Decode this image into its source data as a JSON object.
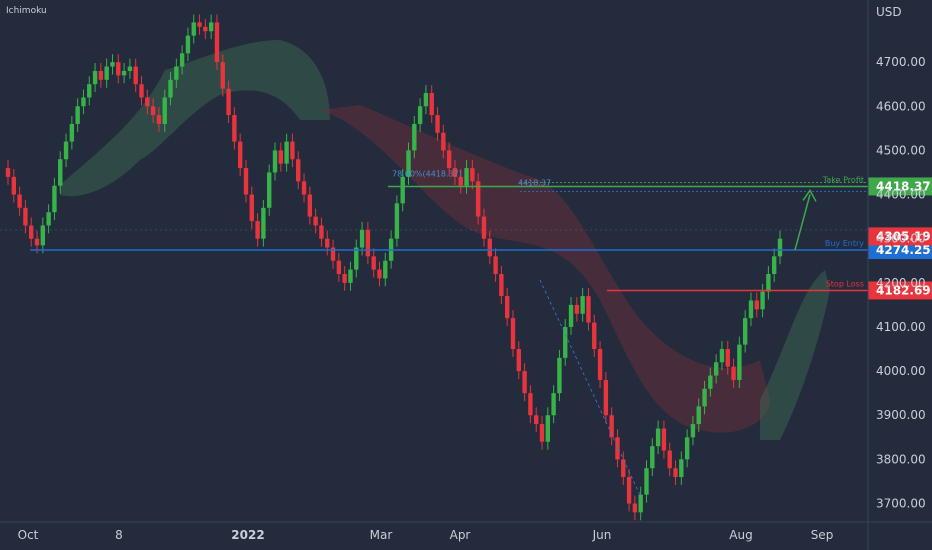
{
  "indicator_label": "Ichimoku",
  "currency": "USD",
  "colors": {
    "background": "#232b3c",
    "axis_text": "#c9ced8",
    "up": "#37b34a",
    "down": "#e8343d",
    "cloud_bull": "#3d6e52",
    "cloud_bear": "#6b2f3c",
    "take_profit": "#3ea84b",
    "buy_entry": "#1f6fd0",
    "stop_loss": "#e8343d",
    "current_price": "#e8343d"
  },
  "chart_data": {
    "type": "candlestick",
    "x_ticks": [
      "Oct",
      "8",
      "2022",
      "Mar",
      "Apr",
      "Jun",
      "Aug",
      "Sep"
    ],
    "y_ticks": [
      4700,
      4600,
      4500,
      4400,
      4300,
      4200,
      4100,
      4000,
      3900,
      3800,
      3700
    ],
    "ylim": [
      3640,
      4800
    ],
    "levels": [
      {
        "name": "Take Profit",
        "value": 4418.37,
        "label": "4418.37"
      },
      {
        "name": "Buy Entry",
        "value": 4274.25,
        "label": "4274.25"
      },
      {
        "name": "Stop Loss",
        "value": 4182.69,
        "label": "4182.69"
      }
    ],
    "current_price": {
      "value": 4305.19,
      "label": "4305.19"
    },
    "annotations": [
      "78.60%(4418.37)",
      "4418.37"
    ],
    "closes": [
      4440,
      4400,
      4370,
      4330,
      4300,
      4285,
      4330,
      4360,
      4420,
      4480,
      4520,
      4560,
      4600,
      4620,
      4650,
      4680,
      4660,
      4690,
      4700,
      4670,
      4680,
      4690,
      4650,
      4620,
      4600,
      4580,
      4560,
      4620,
      4660,
      4690,
      4720,
      4760,
      4790,
      4780,
      4770,
      4790,
      4700,
      4640,
      4580,
      4520,
      4460,
      4400,
      4340,
      4300,
      4370,
      4450,
      4500,
      4470,
      4520,
      4480,
      4430,
      4400,
      4350,
      4330,
      4300,
      4280,
      4250,
      4220,
      4200,
      4230,
      4280,
      4320,
      4260,
      4230,
      4210,
      4250,
      4300,
      4380,
      4440,
      4500,
      4560,
      4600,
      4630,
      4580,
      4540,
      4500,
      4460,
      4440,
      4420,
      4460,
      4430,
      4350,
      4300,
      4260,
      4220,
      4170,
      4120,
      4050,
      4000,
      3950,
      3900,
      3880,
      3840,
      3900,
      3950,
      4030,
      4100,
      4150,
      4130,
      4170,
      4110,
      4050,
      3980,
      3900,
      3850,
      3800,
      3760,
      3700,
      3680,
      3720,
      3780,
      3830,
      3870,
      3820,
      3780,
      3760,
      3800,
      3850,
      3880,
      3920,
      3960,
      3990,
      4020,
      4050,
      4010,
      3980,
      4060,
      4120,
      4160,
      4140,
      4180,
      4220,
      4260,
      4300
    ],
    "opens": [
      4460,
      4440,
      4400,
      4370,
      4330,
      4300,
      4285,
      4330,
      4360,
      4420,
      4480,
      4520,
      4560,
      4600,
      4620,
      4650,
      4680,
      4660,
      4690,
      4700,
      4670,
      4680,
      4690,
      4650,
      4620,
      4600,
      4580,
      4560,
      4620,
      4660,
      4690,
      4720,
      4760,
      4790,
      4780,
      4770,
      4790,
      4700,
      4640,
      4580,
      4520,
      4460,
      4400,
      4340,
      4300,
      4370,
      4450,
      4500,
      4470,
      4520,
      4480,
      4430,
      4400,
      4350,
      4330,
      4300,
      4280,
      4250,
      4220,
      4200,
      4230,
      4280,
      4320,
      4260,
      4230,
      4210,
      4250,
      4300,
      4380,
      4440,
      4500,
      4560,
      4600,
      4630,
      4580,
      4540,
      4500,
      4460,
      4440,
      4420,
      4460,
      4430,
      4350,
      4300,
      4260,
      4220,
      4170,
      4120,
      4050,
      4000,
      3950,
      3900,
      3880,
      3840,
      3900,
      3950,
      4030,
      4100,
      4150,
      4130,
      4170,
      4110,
      4050,
      3980,
      3900,
      3850,
      3800,
      3760,
      3700,
      3680,
      3720,
      3780,
      3830,
      3870,
      3820,
      3780,
      3760,
      3800,
      3850,
      3880,
      3920,
      3960,
      3990,
      4020,
      4050,
      4010,
      3980,
      4060,
      4120,
      4160,
      4140,
      4180,
      4220,
      4260
    ]
  }
}
